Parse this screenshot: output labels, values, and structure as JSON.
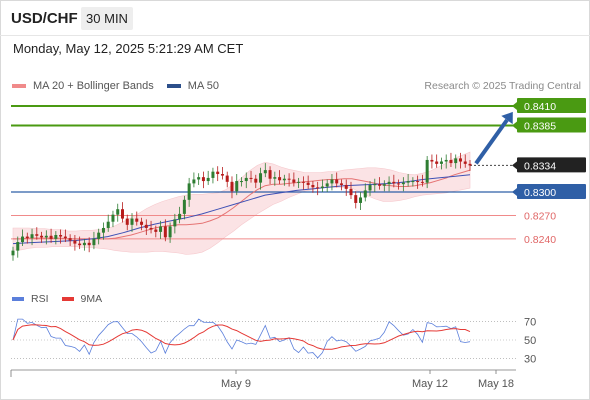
{
  "header": {
    "pair": "USD/CHF",
    "timeframe": "30 MIN"
  },
  "timestamp": "Monday, May 12, 2025 5:21:29 AM CET",
  "legend": {
    "ma20_label": "MA 20 + Bollinger Bands",
    "ma50_label": "MA 50",
    "credit": "Research © 2025 Trading Central"
  },
  "colors": {
    "up": "#2e7d32",
    "down": "#b71c1c",
    "ma20": "#e57373",
    "ma50": "#3f51b5",
    "band_fill": "#fbe3e5",
    "target": "#4a9a12",
    "arrow": "#2f5fa6",
    "pivot": "#2f5fa6",
    "support": "#e06666",
    "rsi": "#5b7fdb",
    "rsi_ma": "#e53935"
  },
  "levels": [
    {
      "value": "0.8410",
      "kind": "target"
    },
    {
      "value": "0.8385",
      "kind": "target"
    },
    {
      "value": "0.8334",
      "kind": "current"
    },
    {
      "value": "0.8300",
      "kind": "pivot"
    },
    {
      "value": "0.8270",
      "kind": "support"
    },
    {
      "value": "0.8240",
      "kind": "support"
    }
  ],
  "rsi_panel": {
    "rsi_label": "RSI",
    "ma_label": "9MA",
    "ticks": [
      "70",
      "50",
      "30"
    ]
  },
  "xaxis": {
    "labels": [
      "May 9",
      "May 12",
      "May 18"
    ]
  },
  "chart_data": {
    "type": "candlestick",
    "title": "USD/CHF",
    "timeframe": "30 MIN",
    "ylim": [
      0.82,
      0.843
    ],
    "levels": [
      0.841,
      0.8385,
      0.8334,
      0.83,
      0.827,
      0.824
    ],
    "close_series": [
      0.8225,
      0.8236,
      0.8243,
      0.8241,
      0.8246,
      0.8244,
      0.8242,
      0.8244,
      0.824,
      0.8245,
      0.8243,
      0.8241,
      0.8238,
      0.8234,
      0.8232,
      0.8235,
      0.8232,
      0.824,
      0.8248,
      0.8254,
      0.8262,
      0.8271,
      0.8278,
      0.8266,
      0.8258,
      0.8266,
      0.8262,
      0.8258,
      0.8254,
      0.8252,
      0.8249,
      0.8256,
      0.8242,
      0.8256,
      0.8265,
      0.8272,
      0.829,
      0.8311,
      0.8316,
      0.8319,
      0.8314,
      0.8318,
      0.8326,
      0.8323,
      0.8321,
      0.8313,
      0.8301,
      0.8314,
      0.8314,
      0.8318,
      0.8317,
      0.8312,
      0.8324,
      0.8328,
      0.8317,
      0.8319,
      0.8315,
      0.8317,
      0.8316,
      0.8312,
      0.8313,
      0.8312,
      0.8309,
      0.8306,
      0.8305,
      0.8307,
      0.8311,
      0.8316,
      0.8311,
      0.8309,
      0.8304,
      0.8296,
      0.8286,
      0.8293,
      0.8302,
      0.8309,
      0.831,
      0.8308,
      0.831,
      0.8313,
      0.8311,
      0.831,
      0.8312,
      0.8314,
      0.8314,
      0.8313,
      0.8312,
      0.8341,
      0.8339,
      0.8336,
      0.8339,
      0.8341,
      0.8337,
      0.8343,
      0.8339,
      0.8336,
      0.8334
    ],
    "ma20_series": [
      0.824,
      0.824,
      0.8241,
      0.8241,
      0.8241,
      0.8241,
      0.8241,
      0.824,
      0.824,
      0.824,
      0.824,
      0.824,
      0.824,
      0.8241,
      0.8243,
      0.8245,
      0.8248,
      0.8251,
      0.8254,
      0.8256,
      0.8257,
      0.8258,
      0.8258,
      0.8259,
      0.826,
      0.8263,
      0.8267,
      0.8273,
      0.828,
      0.8288,
      0.8296,
      0.8303,
      0.8308,
      0.831,
      0.831,
      0.8311,
      0.8312,
      0.8313,
      0.8314,
      0.8315,
      0.8316,
      0.8316,
      0.8317,
      0.8317,
      0.8315,
      0.8313,
      0.8311,
      0.8309,
      0.8308,
      0.8307,
      0.8307,
      0.8308,
      0.831,
      0.8312,
      0.8315,
      0.8318,
      0.8322,
      0.8325,
      0.8328
    ],
    "ma50_series": [
      0.8234,
      0.8235,
      0.8236,
      0.8237,
      0.8238,
      0.824,
      0.8243,
      0.8248,
      0.8254,
      0.8259,
      0.8263,
      0.8267,
      0.8272,
      0.8278,
      0.8284,
      0.829,
      0.8296,
      0.8299,
      0.8302,
      0.8304,
      0.8306,
      0.8308,
      0.8309,
      0.831,
      0.8311,
      0.8313,
      0.8316,
      0.8318,
      0.832,
      0.8322
    ],
    "rsi": {
      "ylim": [
        20,
        80
      ],
      "ticks": [
        70,
        50,
        30
      ]
    },
    "projection": {
      "from": 0.8334,
      "to": 0.841,
      "direction": "up"
    },
    "x_labels": [
      "May 9",
      "May 12",
      "May 18"
    ]
  }
}
